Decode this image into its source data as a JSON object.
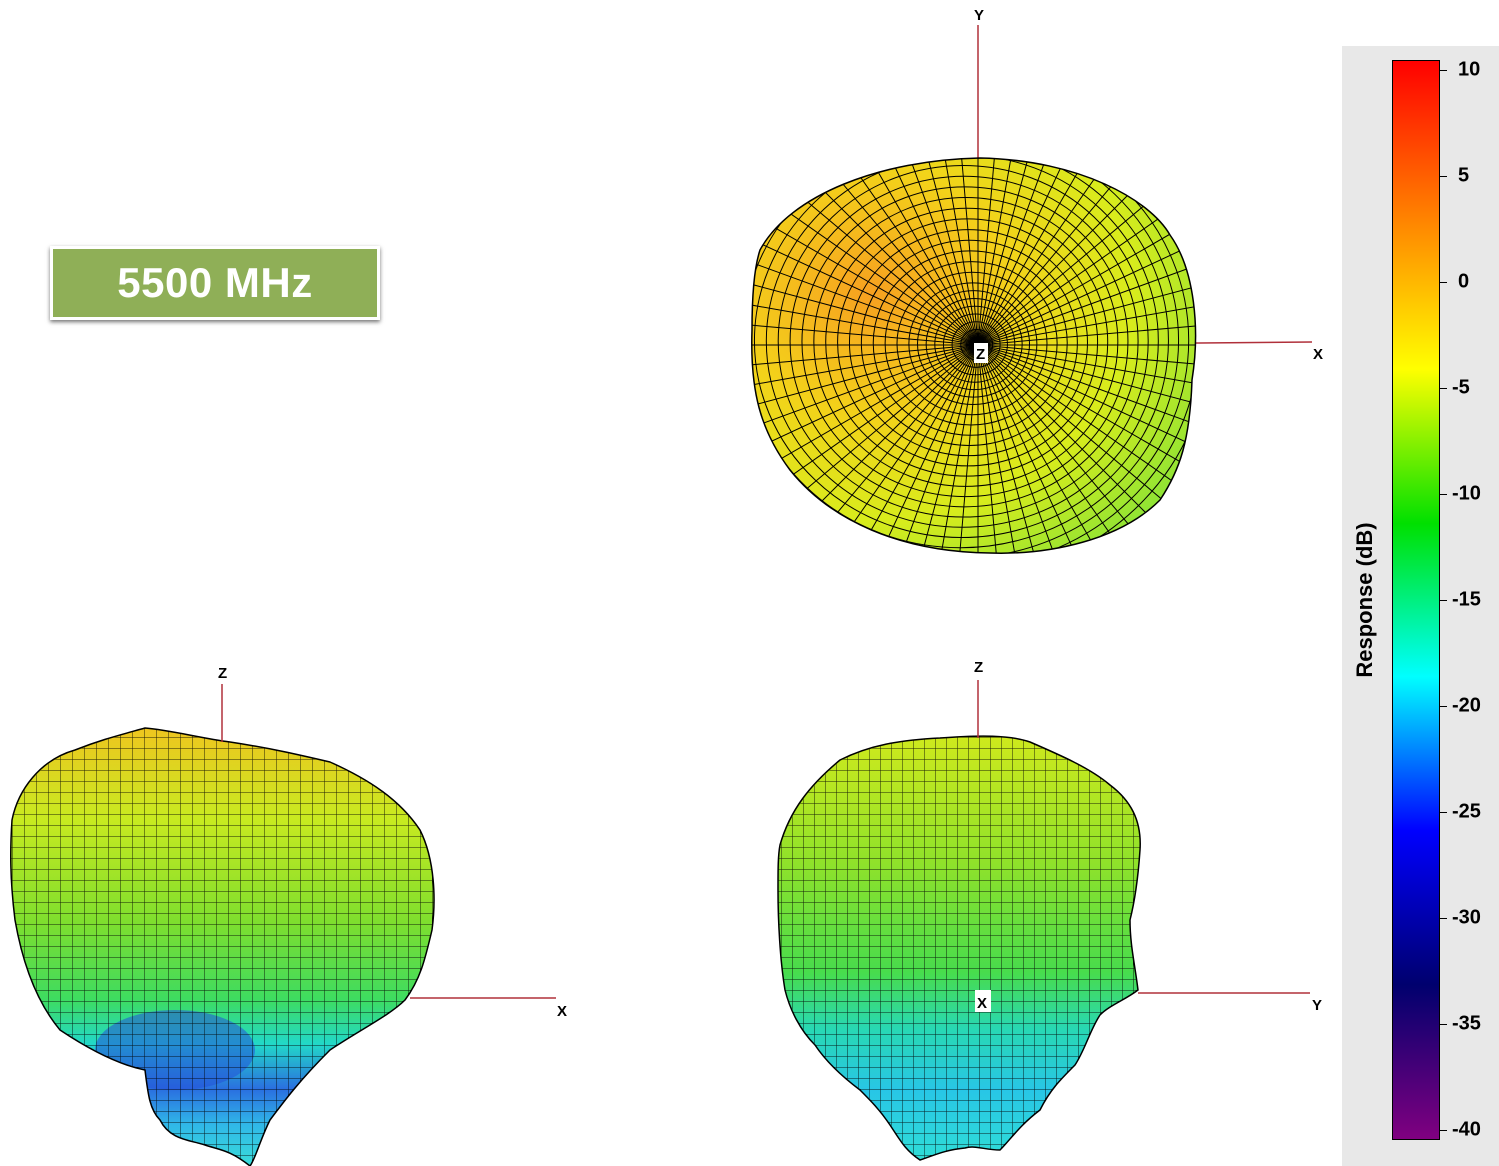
{
  "badge": {
    "label": "5500 MHz",
    "color": "#8faf57"
  },
  "views": {
    "top": {
      "vertical_axis": "Y",
      "horizontal_axis": "X",
      "center_axis": "Z"
    },
    "front": {
      "vertical_axis": "Z",
      "horizontal_axis": "X"
    },
    "side": {
      "vertical_axis": "Z",
      "horizontal_axis": "Y",
      "center_axis": "X"
    }
  },
  "legend": {
    "title": "Response  (dB)",
    "ticks": [
      "10",
      "5",
      "0",
      "-5",
      "-10",
      "-15",
      "-20",
      "-25",
      "-30",
      "-35",
      "-40"
    ],
    "range": [
      -40,
      10
    ],
    "colors": [
      "#ff0000",
      "#ff8000",
      "#ffff00",
      "#00e000",
      "#00ffff",
      "#0000ff",
      "#00006e",
      "#800080"
    ]
  }
}
